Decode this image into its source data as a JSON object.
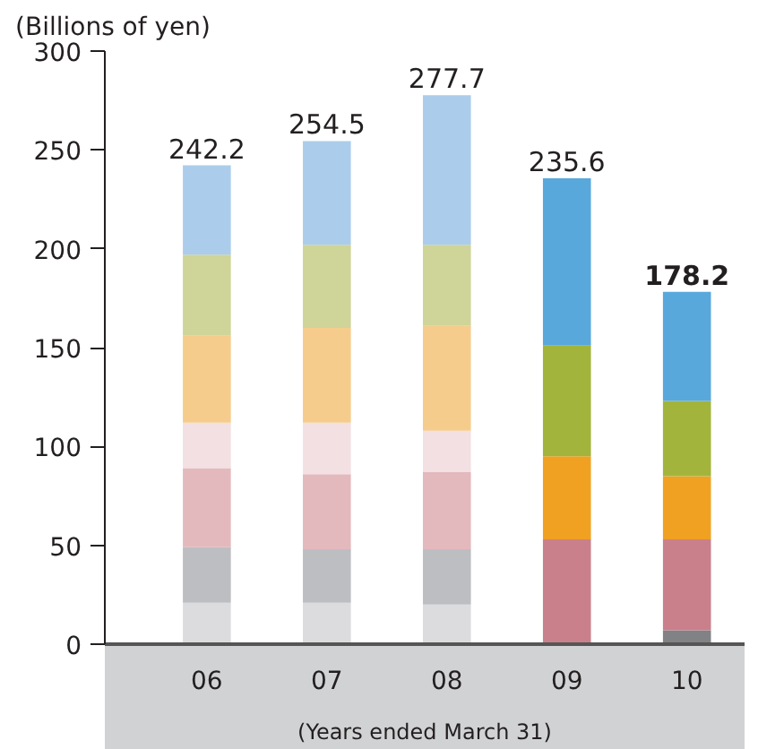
{
  "chart_data": {
    "type": "bar",
    "stacked": true,
    "ylabel": "(Billions of yen)",
    "xlabel": "(Years ended March 31)",
    "categories": [
      "06",
      "07",
      "08",
      "09",
      "10"
    ],
    "ylim": [
      0,
      300
    ],
    "yticks": [
      0,
      50,
      100,
      150,
      200,
      250,
      300
    ],
    "grid": false,
    "series": [
      {
        "colors": [
          "#dcdcde",
          "#dcdcde",
          "#dcdcde",
          "#dcdcde",
          "#808285"
        ],
        "values": [
          21,
          21,
          20,
          null,
          7
        ]
      },
      {
        "colors": [
          "#bdbec2",
          "#bdbec2",
          "#bdbec2",
          "#bdbec2",
          "#bdbec2"
        ],
        "values": [
          28,
          27,
          28,
          null,
          null
        ]
      },
      {
        "colors": [
          "#e3b9be",
          "#e3b9be",
          "#e3b9be",
          "#c9808b",
          "#c9808b"
        ],
        "values": [
          40,
          38,
          39,
          53,
          46
        ]
      },
      {
        "colors": [
          "#f2e0e3",
          "#f2e0e3",
          "#f2e0e3",
          "#f2e0e3",
          "#f2e0e3"
        ],
        "values": [
          23,
          26,
          21,
          null,
          null
        ]
      },
      {
        "colors": [
          "#f6cc8c",
          "#f6cc8c",
          "#f6cc8c",
          "#f0a122",
          "#f0a122"
        ],
        "values": [
          44,
          48,
          53,
          42,
          32
        ]
      },
      {
        "colors": [
          "#cfd498",
          "#cfd498",
          "#cfd498",
          "#a2b43c",
          "#a2b43c"
        ],
        "values": [
          41,
          42,
          41,
          56,
          38
        ]
      },
      {
        "colors": [
          "#abcdeb",
          "#abcdeb",
          "#abcdeb",
          "#58a8dc",
          "#58a8dc"
        ],
        "values": [
          45.2,
          52.5,
          75.7,
          84.6,
          55.2
        ]
      }
    ],
    "totals": [
      "242.2",
      "254.5",
      "277.7",
      "235.6",
      "178.2"
    ]
  }
}
